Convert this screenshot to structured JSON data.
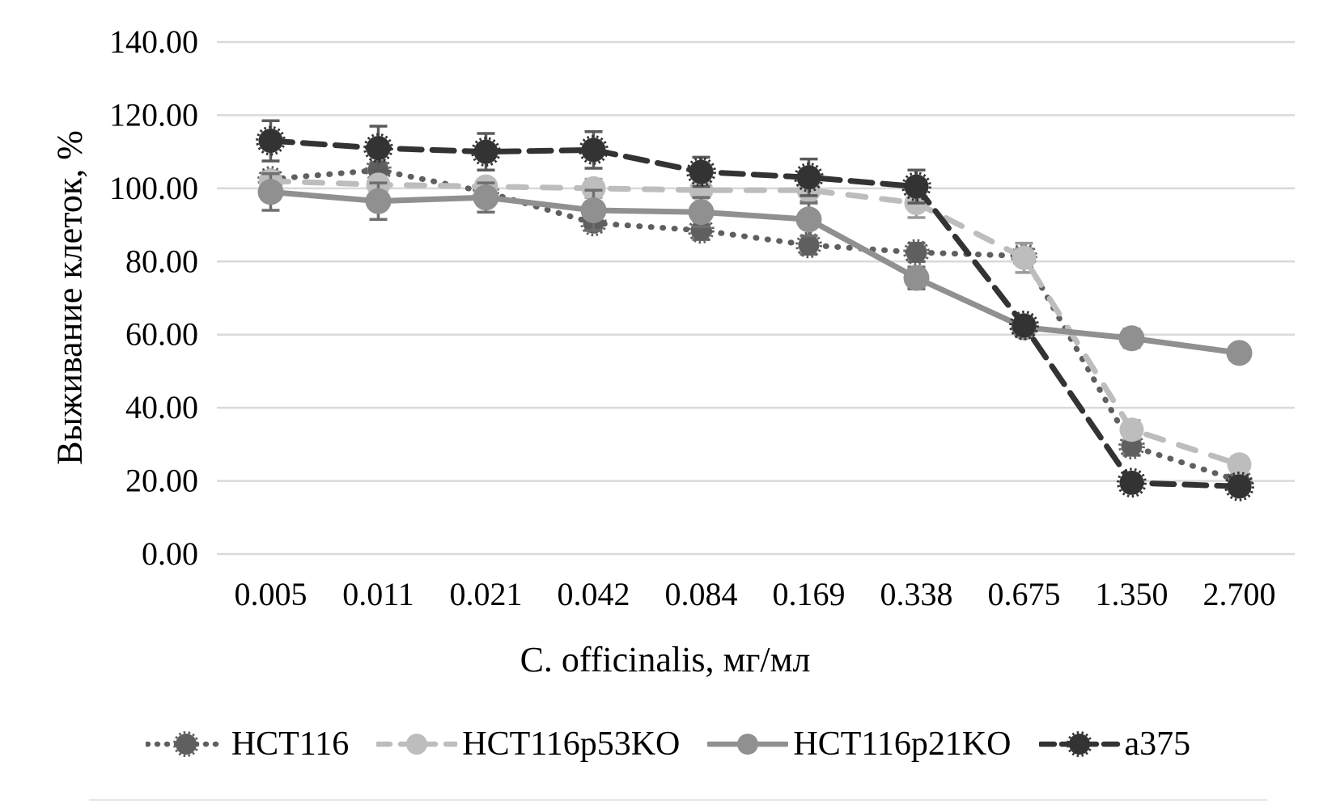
{
  "figure": {
    "background": "#ffffff",
    "bottom_rule_color": "#e6e6e6",
    "grid_color": "#d9d9d9",
    "text_color": "#000000"
  },
  "chart_data": {
    "type": "line",
    "title": "",
    "xlabel": "C. officinalis, мг/мл",
    "ylabel": "Выживание клеток, %",
    "categories": [
      "0.005",
      "0.011",
      "0.021",
      "0.042",
      "0.084",
      "0.169",
      "0.338",
      "0.675",
      "1.350",
      "2.700"
    ],
    "ylim": [
      0,
      140
    ],
    "ytick_values": [
      0,
      20,
      40,
      60,
      80,
      100,
      120,
      140
    ],
    "ytick_labels": [
      "0.00",
      "20.00",
      "40.00",
      "60.00",
      "80.00",
      "100.00",
      "120.00",
      "140.00"
    ],
    "grid": "horizontal",
    "legend_position": "bottom",
    "series": [
      {
        "name": "HCT116",
        "values": [
          102.5,
          105,
          99,
          90.5,
          88.5,
          84.5,
          82.5,
          81.5,
          29.5,
          20
        ],
        "errors": [
          2,
          2,
          2,
          2,
          2.5,
          2.5,
          2.5,
          2,
          2.5,
          2
        ],
        "color": "#5f5f5f",
        "error_color": "#6b6b6b",
        "line_style": "dotted",
        "marker": "circle-scalloped",
        "marker_radius": 13
      },
      {
        "name": "HCT116p53KO",
        "values": [
          102,
          101,
          100.5,
          100,
          99.5,
          99.5,
          96,
          81,
          34,
          24.5
        ],
        "errors": [
          2.5,
          2,
          2,
          2.5,
          2,
          3,
          4,
          4,
          2.5,
          2
        ],
        "color": "#bdbdbd",
        "error_color": "#9b9b9b",
        "line_style": "dashed",
        "marker": "circle",
        "marker_radius": 15
      },
      {
        "name": "HCT116p21KO",
        "values": [
          99,
          96.5,
          97.5,
          94,
          93.5,
          91.5,
          75.5,
          62,
          59,
          55
        ],
        "errors": [
          5,
          5,
          4,
          5.5,
          4,
          4.5,
          3,
          2.5,
          2.5,
          2
        ],
        "color": "#909090",
        "error_color": "#6f6f6f",
        "line_style": "solid",
        "marker": "circle",
        "marker_radius": 16
      },
      {
        "name": "a375",
        "values": [
          113,
          111,
          110,
          110.5,
          104.5,
          103,
          100.5,
          62.5,
          19.5,
          18.5
        ],
        "errors": [
          5.5,
          6,
          5,
          5,
          4,
          5,
          4.5,
          2.5,
          1.5,
          1.5
        ],
        "color": "#333333",
        "error_color": "#5a5a5a",
        "line_style": "long-dash",
        "marker": "circle-scalloped",
        "marker_radius": 15
      }
    ]
  }
}
